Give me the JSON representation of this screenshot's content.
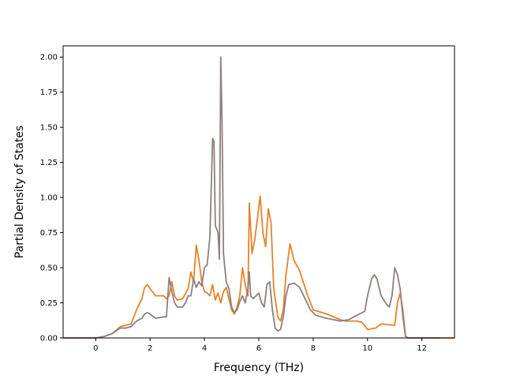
{
  "chart_data": {
    "type": "line",
    "title": "",
    "xlabel": "Frequency (THz)",
    "ylabel": "Partial Density of States",
    "xlim": [
      -1.2,
      13.2
    ],
    "ylim": [
      0.0,
      2.08
    ],
    "xticks": [
      0,
      2,
      4,
      6,
      8,
      10,
      12
    ],
    "xtick_labels": [
      "0",
      "2",
      "4",
      "6",
      "8",
      "10",
      "12"
    ],
    "yticks": [
      0.0,
      0.25,
      0.5,
      0.75,
      1.0,
      1.25,
      1.5,
      1.75,
      2.0
    ],
    "ytick_labels": [
      "0.00",
      "0.25",
      "0.50",
      "0.75",
      "1.00",
      "1.25",
      "1.50",
      "1.75",
      "2.00"
    ],
    "grid": false,
    "series": [
      {
        "color": "#e8812a",
        "points": [
          [
            -1.2,
            0.0
          ],
          [
            0.0,
            0.0
          ],
          [
            0.3,
            0.01
          ],
          [
            0.6,
            0.03
          ],
          [
            0.9,
            0.08
          ],
          [
            1.1,
            0.09
          ],
          [
            1.3,
            0.1
          ],
          [
            1.5,
            0.2
          ],
          [
            1.7,
            0.28
          ],
          [
            1.8,
            0.36
          ],
          [
            1.9,
            0.38
          ],
          [
            2.0,
            0.35
          ],
          [
            2.2,
            0.3
          ],
          [
            2.5,
            0.3
          ],
          [
            2.6,
            0.28
          ],
          [
            2.7,
            0.3
          ],
          [
            2.8,
            0.4
          ],
          [
            2.9,
            0.3
          ],
          [
            3.0,
            0.27
          ],
          [
            3.2,
            0.28
          ],
          [
            3.4,
            0.35
          ],
          [
            3.5,
            0.47
          ],
          [
            3.6,
            0.4
          ],
          [
            3.7,
            0.66
          ],
          [
            3.8,
            0.55
          ],
          [
            3.9,
            0.4
          ],
          [
            4.0,
            0.33
          ],
          [
            4.1,
            0.32
          ],
          [
            4.2,
            0.3
          ],
          [
            4.3,
            0.38
          ],
          [
            4.4,
            0.27
          ],
          [
            4.5,
            0.32
          ],
          [
            4.6,
            0.25
          ],
          [
            4.7,
            0.33
          ],
          [
            4.8,
            0.36
          ],
          [
            4.9,
            0.28
          ],
          [
            5.0,
            0.2
          ],
          [
            5.1,
            0.17
          ],
          [
            5.2,
            0.22
          ],
          [
            5.3,
            0.3
          ],
          [
            5.4,
            0.5
          ],
          [
            5.5,
            0.38
          ],
          [
            5.6,
            0.3
          ],
          [
            5.65,
            0.96
          ],
          [
            5.75,
            0.6
          ],
          [
            5.85,
            0.7
          ],
          [
            5.95,
            0.85
          ],
          [
            6.05,
            1.01
          ],
          [
            6.15,
            0.75
          ],
          [
            6.25,
            0.65
          ],
          [
            6.35,
            0.92
          ],
          [
            6.45,
            0.82
          ],
          [
            6.55,
            0.35
          ],
          [
            6.7,
            0.15
          ],
          [
            6.8,
            0.12
          ],
          [
            6.9,
            0.2
          ],
          [
            7.0,
            0.45
          ],
          [
            7.1,
            0.6
          ],
          [
            7.15,
            0.67
          ],
          [
            7.3,
            0.55
          ],
          [
            7.5,
            0.48
          ],
          [
            7.6,
            0.42
          ],
          [
            7.8,
            0.3
          ],
          [
            8.0,
            0.2
          ],
          [
            8.5,
            0.17
          ],
          [
            9.0,
            0.13
          ],
          [
            9.2,
            0.12
          ],
          [
            9.6,
            0.12
          ],
          [
            9.8,
            0.11
          ],
          [
            10.0,
            0.06
          ],
          [
            10.3,
            0.07
          ],
          [
            10.5,
            0.1
          ],
          [
            11.0,
            0.09
          ],
          [
            11.1,
            0.25
          ],
          [
            11.2,
            0.32
          ],
          [
            11.3,
            0.2
          ],
          [
            11.4,
            0.01
          ],
          [
            11.5,
            0.0
          ],
          [
            13.2,
            0.0
          ]
        ]
      },
      {
        "color": "#8f7f7f",
        "points": [
          [
            -1.2,
            0.0
          ],
          [
            0.0,
            0.0
          ],
          [
            0.3,
            0.01
          ],
          [
            0.6,
            0.03
          ],
          [
            0.9,
            0.07
          ],
          [
            1.1,
            0.07
          ],
          [
            1.3,
            0.08
          ],
          [
            1.5,
            0.12
          ],
          [
            1.7,
            0.14
          ],
          [
            1.8,
            0.17
          ],
          [
            1.9,
            0.18
          ],
          [
            2.0,
            0.17
          ],
          [
            2.2,
            0.14
          ],
          [
            2.5,
            0.15
          ],
          [
            2.6,
            0.15
          ],
          [
            2.7,
            0.43
          ],
          [
            2.8,
            0.33
          ],
          [
            2.9,
            0.25
          ],
          [
            3.0,
            0.22
          ],
          [
            3.2,
            0.22
          ],
          [
            3.3,
            0.25
          ],
          [
            3.4,
            0.3
          ],
          [
            3.5,
            0.3
          ],
          [
            3.6,
            0.42
          ],
          [
            3.7,
            0.36
          ],
          [
            3.8,
            0.4
          ],
          [
            3.9,
            0.37
          ],
          [
            4.0,
            0.5
          ],
          [
            4.1,
            0.52
          ],
          [
            4.2,
            0.72
          ],
          [
            4.3,
            1.42
          ],
          [
            4.35,
            1.4
          ],
          [
            4.4,
            0.8
          ],
          [
            4.5,
            0.75
          ],
          [
            4.55,
            0.56
          ],
          [
            4.6,
            2.0
          ],
          [
            4.65,
            1.5
          ],
          [
            4.7,
            0.6
          ],
          [
            4.8,
            0.4
          ],
          [
            4.9,
            0.35
          ],
          [
            5.0,
            0.22
          ],
          [
            5.1,
            0.18
          ],
          [
            5.2,
            0.2
          ],
          [
            5.3,
            0.26
          ],
          [
            5.4,
            0.3
          ],
          [
            5.5,
            0.25
          ],
          [
            5.6,
            0.35
          ],
          [
            5.65,
            0.47
          ],
          [
            5.7,
            0.3
          ],
          [
            5.8,
            0.28
          ],
          [
            5.9,
            0.3
          ],
          [
            6.0,
            0.32
          ],
          [
            6.1,
            0.25
          ],
          [
            6.2,
            0.22
          ],
          [
            6.3,
            0.38
          ],
          [
            6.4,
            0.4
          ],
          [
            6.5,
            0.2
          ],
          [
            6.6,
            0.07
          ],
          [
            6.7,
            0.05
          ],
          [
            6.8,
            0.06
          ],
          [
            6.9,
            0.15
          ],
          [
            7.0,
            0.3
          ],
          [
            7.1,
            0.38
          ],
          [
            7.3,
            0.39
          ],
          [
            7.5,
            0.36
          ],
          [
            7.7,
            0.28
          ],
          [
            7.9,
            0.2
          ],
          [
            8.1,
            0.16
          ],
          [
            8.5,
            0.14
          ],
          [
            9.0,
            0.12
          ],
          [
            9.3,
            0.13
          ],
          [
            9.5,
            0.15
          ],
          [
            9.7,
            0.17
          ],
          [
            9.9,
            0.19
          ],
          [
            10.0,
            0.3
          ],
          [
            10.15,
            0.42
          ],
          [
            10.25,
            0.45
          ],
          [
            10.35,
            0.42
          ],
          [
            10.5,
            0.3
          ],
          [
            10.7,
            0.24
          ],
          [
            10.8,
            0.22
          ],
          [
            10.9,
            0.3
          ],
          [
            11.0,
            0.5
          ],
          [
            11.1,
            0.45
          ],
          [
            11.2,
            0.35
          ],
          [
            11.3,
            0.15
          ],
          [
            11.4,
            0.01
          ],
          [
            11.5,
            0.0
          ],
          [
            12.65,
            0.0
          ]
        ]
      }
    ]
  }
}
